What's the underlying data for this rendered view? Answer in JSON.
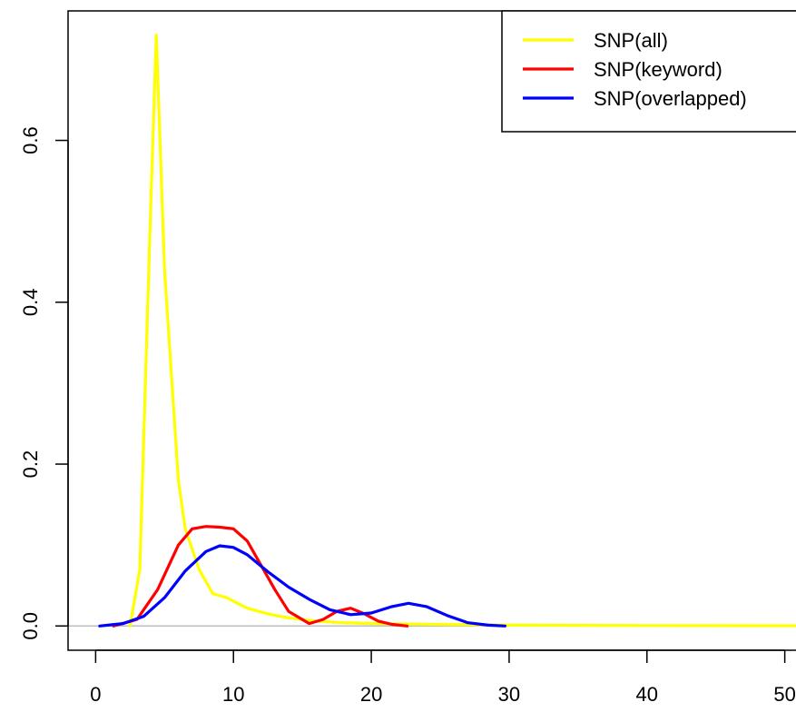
{
  "chart_data": {
    "type": "line",
    "title": "",
    "xlabel": "",
    "ylabel": "",
    "xlim": [
      -2,
      52
    ],
    "ylim": [
      -0.03,
      0.76
    ],
    "x_ticks": [
      0,
      10,
      20,
      30,
      40,
      50
    ],
    "x_tick_labels": [
      "0",
      "10",
      "20",
      "30",
      "40",
      "50"
    ],
    "y_ticks": [
      0.0,
      0.2,
      0.4,
      0.6
    ],
    "y_tick_labels": [
      "0.0",
      "0.2",
      "0.4",
      "0.6"
    ],
    "baseline": 0,
    "legend": {
      "position": "top-right"
    },
    "series": [
      {
        "name": "SNP(all)",
        "color": "#ffff00",
        "x": [
          2.5,
          3.2,
          4.0,
          4.4,
          5.0,
          5.5,
          6.0,
          6.5,
          7.5,
          8.5,
          9.5,
          11.0,
          12.5,
          14.0,
          16.0,
          18.0,
          20.0,
          25.0,
          30.0,
          40.0,
          50.0,
          52.0
        ],
        "y": [
          0.0,
          0.07,
          0.52,
          0.73,
          0.44,
          0.31,
          0.18,
          0.12,
          0.07,
          0.04,
          0.035,
          0.022,
          0.015,
          0.01,
          0.006,
          0.004,
          0.003,
          0.002,
          0.001,
          0.0005,
          0.0003,
          0.0003
        ]
      },
      {
        "name": "SNP(keyword)",
        "color": "#ff0000",
        "x": [
          1.3,
          3.0,
          4.5,
          6.0,
          7.0,
          8.0,
          9.0,
          10.0,
          11.0,
          12.0,
          13.0,
          14.0,
          15.5,
          16.5,
          17.5,
          18.5,
          19.5,
          20.5,
          21.5,
          22.6
        ],
        "y": [
          0.0,
          0.008,
          0.045,
          0.1,
          0.12,
          0.123,
          0.122,
          0.12,
          0.105,
          0.075,
          0.045,
          0.018,
          0.003,
          0.008,
          0.018,
          0.022,
          0.015,
          0.006,
          0.002,
          0.0
        ]
      },
      {
        "name": "SNP(overlapped)",
        "color": "#0000ff",
        "x": [
          0.3,
          2.0,
          3.5,
          5.0,
          6.5,
          8.0,
          9.0,
          10.0,
          11.0,
          12.5,
          14.0,
          15.5,
          17.0,
          18.5,
          20.0,
          21.5,
          22.7,
          24.0,
          25.5,
          27.0,
          28.5,
          29.7
        ],
        "y": [
          0.0,
          0.003,
          0.012,
          0.035,
          0.068,
          0.092,
          0.099,
          0.097,
          0.088,
          0.067,
          0.048,
          0.033,
          0.02,
          0.014,
          0.016,
          0.024,
          0.028,
          0.024,
          0.013,
          0.004,
          0.001,
          0.0
        ]
      }
    ]
  }
}
